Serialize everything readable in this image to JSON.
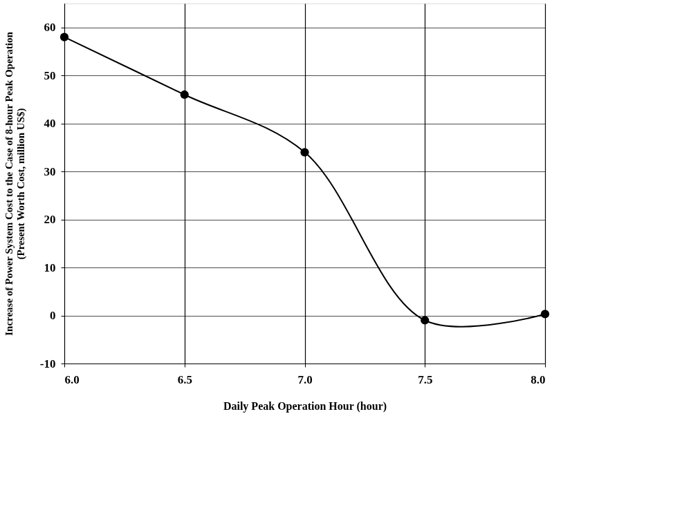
{
  "chart_data": {
    "type": "line",
    "xlabel": "Daily Peak Operation Hour (hour)",
    "ylabel": "Increase of Power System Cost to the Case of 8-hour Peak Operation\n(Present Worth Cost, million US$)",
    "x": [
      6.0,
      6.5,
      7.0,
      7.5,
      8.0
    ],
    "series": [
      {
        "color": "#000000",
        "values": [
          58,
          46,
          34,
          -1,
          0.3
        ]
      }
    ],
    "xlim": [
      6.0,
      8.0
    ],
    "xticks": [
      {
        "value": 6,
        "label": "6.0"
      },
      {
        "value": 6.5,
        "label": "6.5"
      },
      {
        "value": 7,
        "label": "7.0"
      },
      {
        "value": 7.5,
        "label": "7.5"
      },
      {
        "value": 8,
        "label": "8.0"
      }
    ],
    "ylim": [
      -10,
      65
    ],
    "yticks": [
      -10,
      0,
      10,
      20,
      30,
      40,
      50,
      60
    ],
    "grid": true,
    "marker": "circle",
    "line_style": "solid"
  }
}
